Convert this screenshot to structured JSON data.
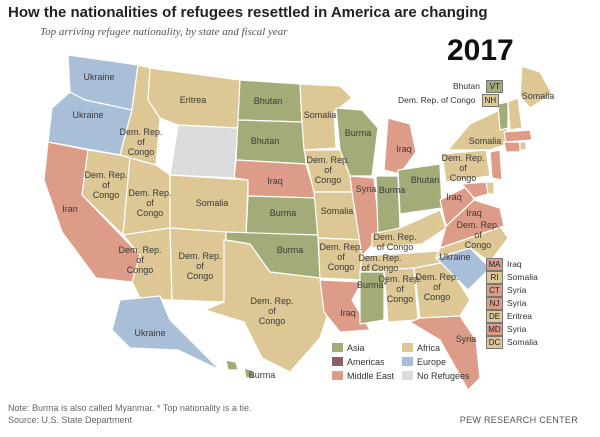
{
  "title": "How the nationalities of refugees resettled in America are changing",
  "subtitle": "Top arriving refugee nationality, by state and fiscal year",
  "year": "2017",
  "colors": {
    "Asia": "#a3ac78",
    "Africa": "#dcc795",
    "Americas": "#8c5f66",
    "Europe": "#a9bfd8",
    "Middle East": "#dc9c88",
    "No Refugees": "#dcdcdc"
  },
  "legend": [
    {
      "label": "Asia",
      "color": "#a3ac78"
    },
    {
      "label": "Africa",
      "color": "#dcc795"
    },
    {
      "label": "Americas",
      "color": "#8c5f66"
    },
    {
      "label": "Europe",
      "color": "#a9bfd8"
    },
    {
      "label": "Middle East",
      "color": "#dc9c88"
    },
    {
      "label": "No Refugees",
      "color": "#dcdcdc"
    }
  ],
  "states": [
    {
      "name": "Washington",
      "label": "Ukraine",
      "region": "Europe"
    },
    {
      "name": "Oregon",
      "label": "Ukraine",
      "region": "Europe"
    },
    {
      "name": "California",
      "label": "Iran",
      "region": "Middle East"
    },
    {
      "name": "Idaho",
      "label": "Dem. Rep. of Congo",
      "region": "Africa"
    },
    {
      "name": "Nevada",
      "label": "Dem. Rep. of Congo",
      "region": "Africa"
    },
    {
      "name": "Montana",
      "label": "Eritrea",
      "region": "Africa"
    },
    {
      "name": "Wyoming",
      "label": "",
      "region": "No Refugees"
    },
    {
      "name": "Utah",
      "label": "Dem. Rep. of Congo",
      "region": "Africa"
    },
    {
      "name": "Colorado",
      "label": "Somalia",
      "region": "Africa"
    },
    {
      "name": "Arizona",
      "label": "Dem. Rep. of Congo",
      "region": "Africa"
    },
    {
      "name": "New Mexico",
      "label": "Dem. Rep. of Congo",
      "region": "Africa"
    },
    {
      "name": "North Dakota",
      "label": "Bhutan",
      "region": "Asia"
    },
    {
      "name": "South Dakota",
      "label": "Bhutan",
      "region": "Asia"
    },
    {
      "name": "Nebraska",
      "label": "Iraq",
      "region": "Middle East"
    },
    {
      "name": "Kansas",
      "label": "Burma",
      "region": "Asia"
    },
    {
      "name": "Oklahoma",
      "label": "Burma",
      "region": "Asia"
    },
    {
      "name": "Texas",
      "label": "Dem. Rep. of Congo",
      "region": "Africa"
    },
    {
      "name": "Minnesota",
      "label": "Somalia",
      "region": "Africa"
    },
    {
      "name": "Iowa",
      "label": "Dem. Rep. of Congo",
      "region": "Africa"
    },
    {
      "name": "Missouri",
      "label": "Somalia",
      "region": "Africa"
    },
    {
      "name": "Arkansas",
      "label": "Dem. Rep. of Congo",
      "region": "Africa"
    },
    {
      "name": "Louisiana",
      "label": "Iraq",
      "region": "Middle East"
    },
    {
      "name": "Wisconsin",
      "label": "Burma",
      "region": "Asia"
    },
    {
      "name": "Illinois",
      "label": "Syria",
      "region": "Middle East"
    },
    {
      "name": "Michigan",
      "label": "Iraq",
      "region": "Middle East"
    },
    {
      "name": "Indiana",
      "label": "Burma",
      "region": "Asia"
    },
    {
      "name": "Ohio",
      "label": "Bhutan",
      "region": "Asia"
    },
    {
      "name": "Kentucky",
      "label": "Dem. Rep. of Congo",
      "region": "Africa"
    },
    {
      "name": "Tennessee",
      "label": "Dem. Rep. of Congo",
      "region": "Africa"
    },
    {
      "name": "Mississippi",
      "label": "Burma*",
      "region": "Asia"
    },
    {
      "name": "Alabama",
      "label": "Dem. Rep. of Congo",
      "region": "Africa"
    },
    {
      "name": "Georgia",
      "label": "Dem. Rep. of Congo",
      "region": "Africa"
    },
    {
      "name": "Florida",
      "label": "Syria",
      "region": "Middle East"
    },
    {
      "name": "South Carolina",
      "label": "Ukraine",
      "region": "Europe"
    },
    {
      "name": "North Carolina",
      "label": "Dem. Rep. of Congo",
      "region": "Africa"
    },
    {
      "name": "Virginia",
      "label": "Iraq",
      "region": "Middle East"
    },
    {
      "name": "West Virginia",
      "label": "Iraq",
      "region": "Middle East"
    },
    {
      "name": "Pennsylvania",
      "label": "Dem. Rep. of Congo",
      "region": "Africa"
    },
    {
      "name": "New York",
      "label": "Somalia",
      "region": "Africa"
    },
    {
      "name": "Maine",
      "label": "Somalia",
      "region": "Africa"
    },
    {
      "name": "Alaska",
      "label": "Ukraine",
      "region": "Europe"
    },
    {
      "name": "Hawaii",
      "label": "Burma",
      "region": "Asia"
    }
  ],
  "northeast_top": [
    {
      "label": "Bhutan",
      "abbr": "VT",
      "color": "#a3ac78"
    },
    {
      "label": "Dem. Rep. of Congo",
      "abbr": "NH",
      "color": "#dcc795"
    }
  ],
  "northeast_side": [
    {
      "abbr": "MA",
      "label": "Iraq",
      "color": "#dc9c88"
    },
    {
      "abbr": "RI",
      "label": "Somalia",
      "color": "#dcc795"
    },
    {
      "abbr": "CT",
      "label": "Syria",
      "color": "#dc9c88"
    },
    {
      "abbr": "NJ",
      "label": "Syria",
      "color": "#dc9c88"
    },
    {
      "abbr": "DE",
      "label": "Eritrea",
      "color": "#dcc795"
    },
    {
      "abbr": "MD",
      "label": "Syria",
      "color": "#dc9c88"
    },
    {
      "abbr": "DC",
      "label": "Somalia",
      "color": "#dcc795"
    }
  ],
  "note": "Note: Burma is also called Myanmar. * Top nationality is a tie.",
  "source": "Source: U.S. State Department",
  "credit": "PEW RESEARCH CENTER"
}
